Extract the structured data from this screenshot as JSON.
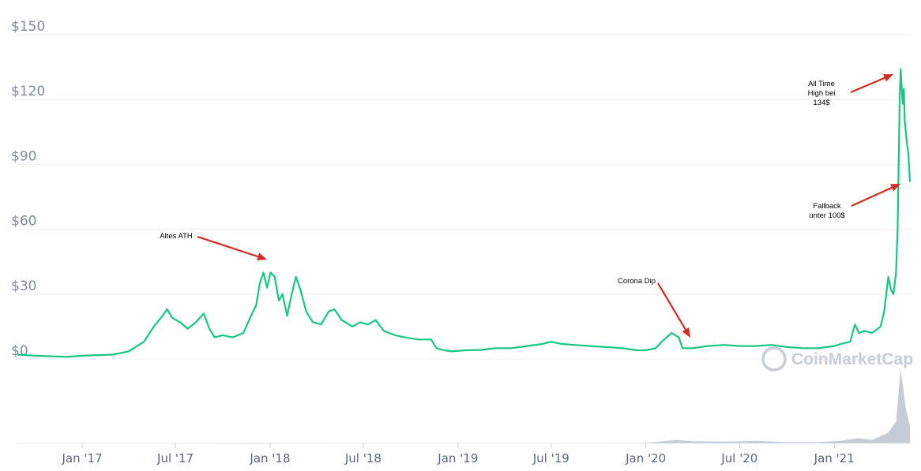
{
  "chart_data": {
    "type": "line",
    "ylim": [
      0,
      150
    ],
    "y_ticks": [
      "$0",
      "$30",
      "$60",
      "$90",
      "$120",
      "$150"
    ],
    "y_tick_values": [
      0,
      30,
      60,
      90,
      120,
      150
    ],
    "x_ticks": [
      "Jan '17",
      "Jul '17",
      "Jan '18",
      "Jul '18",
      "Jan '19",
      "Jul '19",
      "Jan '20",
      "Jul '20",
      "Jan '21"
    ],
    "x_tick_dates": [
      "2017-01-01",
      "2017-07-01",
      "2018-01-01",
      "2018-07-01",
      "2019-01-01",
      "2019-07-01",
      "2020-01-01",
      "2020-07-01",
      "2021-01-01"
    ],
    "x_range": [
      "2016-08-28",
      "2021-05-28"
    ],
    "line_color": "#16c784",
    "grid": true,
    "series": [
      {
        "points": [
          [
            "2016-08-28",
            2
          ],
          [
            "2016-10-01",
            1.5
          ],
          [
            "2016-12-01",
            1
          ],
          [
            "2017-01-01",
            1.5
          ],
          [
            "2017-03-01",
            2
          ],
          [
            "2017-04-01",
            3.5
          ],
          [
            "2017-05-01",
            8
          ],
          [
            "2017-05-20",
            15
          ],
          [
            "2017-06-06",
            20
          ],
          [
            "2017-06-15",
            23
          ],
          [
            "2017-06-25",
            19
          ],
          [
            "2017-07-10",
            17
          ],
          [
            "2017-07-25",
            14
          ],
          [
            "2017-08-10",
            17
          ],
          [
            "2017-08-25",
            21
          ],
          [
            "2017-09-05",
            14
          ],
          [
            "2017-09-15",
            10
          ],
          [
            "2017-10-01",
            11
          ],
          [
            "2017-10-20",
            10
          ],
          [
            "2017-11-10",
            12
          ],
          [
            "2017-11-25",
            20
          ],
          [
            "2017-12-05",
            25
          ],
          [
            "2017-12-12",
            35
          ],
          [
            "2017-12-19",
            40
          ],
          [
            "2017-12-26",
            33
          ],
          [
            "2018-01-02",
            40
          ],
          [
            "2018-01-10",
            38
          ],
          [
            "2018-01-18",
            27
          ],
          [
            "2018-01-25",
            30
          ],
          [
            "2018-02-03",
            20
          ],
          [
            "2018-02-12",
            30
          ],
          [
            "2018-02-20",
            38
          ],
          [
            "2018-03-01",
            32
          ],
          [
            "2018-03-12",
            22
          ],
          [
            "2018-03-25",
            17
          ],
          [
            "2018-04-10",
            16
          ],
          [
            "2018-04-25",
            22
          ],
          [
            "2018-05-06",
            23
          ],
          [
            "2018-05-20",
            18
          ],
          [
            "2018-06-10",
            15
          ],
          [
            "2018-06-25",
            17
          ],
          [
            "2018-07-10",
            16
          ],
          [
            "2018-07-25",
            18
          ],
          [
            "2018-08-10",
            13
          ],
          [
            "2018-08-20",
            12
          ],
          [
            "2018-09-01",
            11
          ],
          [
            "2018-09-20",
            10
          ],
          [
            "2018-10-15",
            9
          ],
          [
            "2018-11-10",
            9
          ],
          [
            "2018-11-20",
            5
          ],
          [
            "2018-12-05",
            4
          ],
          [
            "2018-12-20",
            3.5
          ],
          [
            "2019-01-15",
            4
          ],
          [
            "2019-02-15",
            4.2
          ],
          [
            "2019-03-15",
            5
          ],
          [
            "2019-04-15",
            5
          ],
          [
            "2019-05-15",
            6
          ],
          [
            "2019-06-15",
            7
          ],
          [
            "2019-07-01",
            8
          ],
          [
            "2019-07-20",
            7
          ],
          [
            "2019-08-15",
            6.5
          ],
          [
            "2019-09-15",
            6
          ],
          [
            "2019-10-15",
            5.5
          ],
          [
            "2019-11-15",
            5
          ],
          [
            "2019-12-15",
            4
          ],
          [
            "2020-01-01",
            4
          ],
          [
            "2020-01-20",
            5
          ],
          [
            "2020-02-01",
            8
          ],
          [
            "2020-02-10",
            10
          ],
          [
            "2020-02-20",
            12
          ],
          [
            "2020-03-05",
            10
          ],
          [
            "2020-03-12",
            5
          ],
          [
            "2020-04-01",
            5
          ],
          [
            "2020-05-01",
            6
          ],
          [
            "2020-06-01",
            6.5
          ],
          [
            "2020-07-01",
            6
          ],
          [
            "2020-08-01",
            6
          ],
          [
            "2020-09-01",
            6.5
          ],
          [
            "2020-10-01",
            5.5
          ],
          [
            "2020-11-01",
            5
          ],
          [
            "2020-12-01",
            5
          ],
          [
            "2021-01-01",
            6
          ],
          [
            "2021-01-15",
            7
          ],
          [
            "2021-02-01",
            8
          ],
          [
            "2021-02-10",
            16
          ],
          [
            "2021-02-18",
            12
          ],
          [
            "2021-03-01",
            13
          ],
          [
            "2021-03-15",
            12
          ],
          [
            "2021-04-01",
            15
          ],
          [
            "2021-04-08",
            22
          ],
          [
            "2021-04-12",
            30
          ],
          [
            "2021-04-16",
            38
          ],
          [
            "2021-04-21",
            32
          ],
          [
            "2021-04-26",
            30
          ],
          [
            "2021-05-01",
            40
          ],
          [
            "2021-05-04",
            60
          ],
          [
            "2021-05-06",
            90
          ],
          [
            "2021-05-08",
            120
          ],
          [
            "2021-05-10",
            134
          ],
          [
            "2021-05-12",
            125
          ],
          [
            "2021-05-14",
            118
          ],
          [
            "2021-05-16",
            125
          ],
          [
            "2021-05-18",
            110
          ],
          [
            "2021-05-20",
            105
          ],
          [
            "2021-05-22",
            100
          ],
          [
            "2021-05-25",
            95
          ],
          [
            "2021-05-28",
            82
          ]
        ]
      }
    ],
    "annotations": [
      {
        "lines": [
          "Altes ATH"
        ],
        "date": "2017-12-28",
        "value": 41
      },
      {
        "lines": [
          "Corona Dip"
        ],
        "date": "2020-03-12",
        "value": 8
      },
      {
        "lines": [
          "All Time",
          "High bei",
          "134$"
        ],
        "date": "2021-05-10",
        "value": 134
      },
      {
        "lines": [
          "Fallback",
          "unter 100$"
        ],
        "date": "2021-05-27",
        "value": 83
      }
    ],
    "annotation_color": "#d42a1f",
    "volume_color": "#b8bfcc",
    "volume": [
      [
        "2016-08-28",
        0.2
      ],
      [
        "2017-06-01",
        0.4
      ],
      [
        "2017-12-15",
        0.8
      ],
      [
        "2018-06-01",
        0.4
      ],
      [
        "2019-01-01",
        0.2
      ],
      [
        "2019-06-01",
        0.3
      ],
      [
        "2020-01-01",
        0.5
      ],
      [
        "2020-03-01",
        4
      ],
      [
        "2020-04-01",
        2.5
      ],
      [
        "2020-06-01",
        2
      ],
      [
        "2020-08-01",
        3
      ],
      [
        "2020-10-01",
        1.5
      ],
      [
        "2020-12-01",
        1.5
      ],
      [
        "2021-01-15",
        3
      ],
      [
        "2021-02-15",
        6
      ],
      [
        "2021-03-15",
        4
      ],
      [
        "2021-04-15",
        12
      ],
      [
        "2021-05-01",
        25
      ],
      [
        "2021-05-10",
        85
      ],
      [
        "2021-05-20",
        40
      ],
      [
        "2021-05-28",
        20
      ]
    ]
  },
  "watermark": "CoinMarketCap"
}
